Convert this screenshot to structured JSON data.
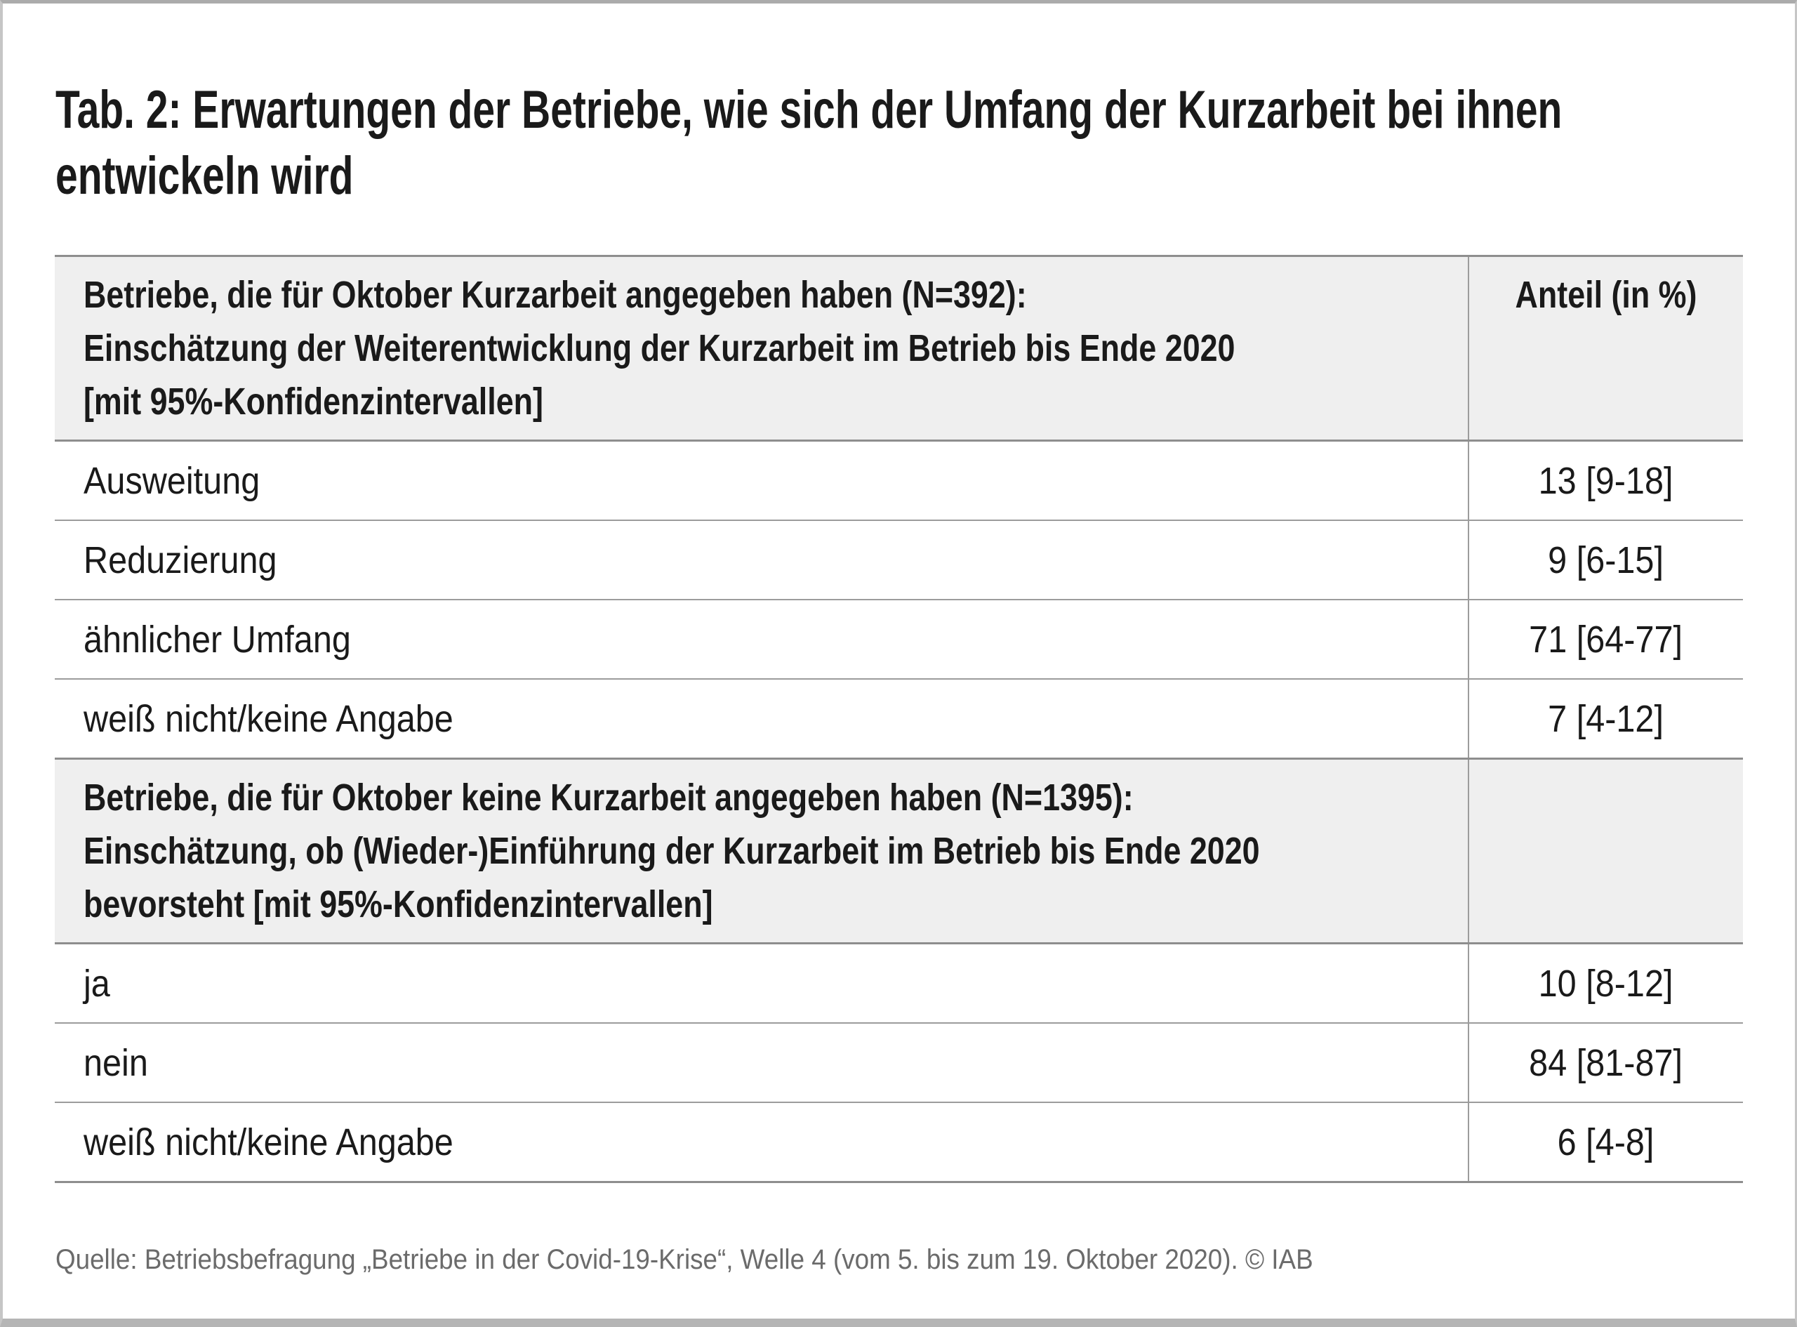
{
  "page": {
    "title_line1": "Tab. 2: Erwartungen der Betriebe, wie sich der Umfang der Kurzarbeit bei ihnen",
    "title_line2": "entwickeln wird",
    "source": "Quelle: Betriebsbefragung „Betriebe in der Covid-19-Krise“, Welle 4 (vom 5. bis zum 19. Oktober 2020). © IAB"
  },
  "table": {
    "value_column_header": "Anteil (in %)",
    "sections": [
      {
        "header_lines": [
          "Betriebe, die für Oktober Kurzarbeit angegeben haben (N=392):",
          "Einschätzung der Weiterentwicklung der Kurzarbeit im Betrieb bis Ende 2020",
          "[mit 95%-Konfidenzintervallen]"
        ],
        "rows": [
          {
            "label": "Ausweitung",
            "value": "13 [9-18]"
          },
          {
            "label": "Reduzierung",
            "value": "9 [6-15]"
          },
          {
            "label": "ähnlicher Umfang",
            "value": "71 [64-77]"
          },
          {
            "label": "weiß nicht/keine Angabe",
            "value": "7 [4-12]"
          }
        ]
      },
      {
        "header_lines": [
          "Betriebe, die für Oktober keine Kurzarbeit angegeben haben (N=1395):",
          "Einschätzung, ob (Wieder-)Einführung der Kurzarbeit im Betrieb bis Ende 2020",
          "bevorsteht [mit 95%-Konfidenzintervallen]"
        ],
        "rows": [
          {
            "label": "ja",
            "value": "10 [8-12]"
          },
          {
            "label": "nein",
            "value": "84 [81-87]"
          },
          {
            "label": "weiß nicht/keine Angabe",
            "value": "6 [4-8]"
          }
        ]
      }
    ]
  },
  "colors": {
    "header_bg": "#efefef",
    "border_strong": "#8e8e8e",
    "border_light": "#9c9c9c",
    "text": "#1a1a1a",
    "source_text": "#6b6b6b",
    "frame": "#b5b5b5"
  }
}
